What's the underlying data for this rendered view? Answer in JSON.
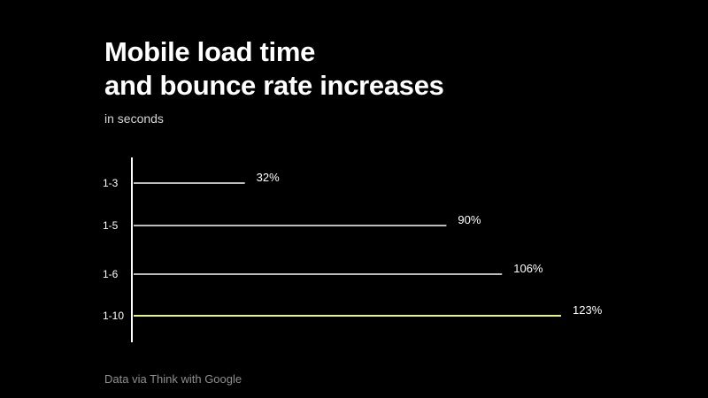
{
  "chart_data": {
    "type": "bar",
    "orientation": "horizontal",
    "title_lines": [
      "Mobile load time",
      "and bounce rate increases"
    ],
    "subtitle": "in seconds",
    "source": "Data via Think with Google",
    "categories": [
      "1-3",
      "1-5",
      "1-6",
      "1-10"
    ],
    "values": [
      32,
      90,
      106,
      123
    ],
    "value_labels": [
      "32%",
      "90%",
      "106%",
      "123%"
    ],
    "xlim": [
      0,
      123
    ],
    "grid": false,
    "legend": "none",
    "highlight_index": 3
  },
  "colors": {
    "background": "#000000",
    "text": "#ffffff",
    "bar": "#bdbdbd",
    "highlight": "#e6f57a",
    "axis": "#ffffff",
    "source": "#8f8f8f"
  }
}
